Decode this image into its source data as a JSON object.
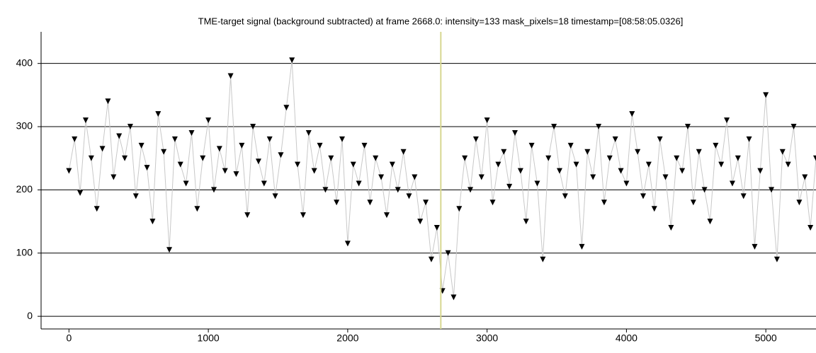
{
  "chart_data": {
    "type": "line",
    "title": "TME-target signal (background subtracted) at frame 2668.0: intensity=133 mask_pixels=18 timestamp=[08:58:05.0326]",
    "x": [
      0,
      40,
      80,
      120,
      160,
      200,
      240,
      280,
      320,
      360,
      400,
      440,
      480,
      520,
      560,
      600,
      640,
      680,
      720,
      760,
      800,
      840,
      880,
      920,
      960,
      1000,
      1040,
      1080,
      1120,
      1160,
      1200,
      1240,
      1280,
      1320,
      1360,
      1400,
      1440,
      1480,
      1520,
      1560,
      1600,
      1640,
      1680,
      1720,
      1760,
      1800,
      1840,
      1880,
      1920,
      1960,
      2000,
      2040,
      2080,
      2120,
      2160,
      2200,
      2240,
      2280,
      2320,
      2360,
      2400,
      2440,
      2480,
      2520,
      2560,
      2600,
      2640,
      2680,
      2720,
      2760,
      2800,
      2840,
      2880,
      2920,
      2960,
      3000,
      3040,
      3080,
      3120,
      3160,
      3200,
      3240,
      3280,
      3320,
      3360,
      3400,
      3440,
      3480,
      3520,
      3560,
      3600,
      3640,
      3680,
      3720,
      3760,
      3800,
      3840,
      3880,
      3920,
      3960,
      4000,
      4040,
      4080,
      4120,
      4160,
      4200,
      4240,
      4280,
      4320,
      4360,
      4400,
      4440,
      4480,
      4520,
      4560,
      4600,
      4640,
      4680,
      4720,
      4760,
      4800,
      4840,
      4880,
      4920,
      4960,
      5000,
      5040,
      5080,
      5120,
      5160,
      5200,
      5240,
      5280,
      5320,
      5360
    ],
    "series": [
      {
        "color": "#000000",
        "line_color": "#c8c8c8",
        "values": [
          230,
          280,
          195,
          310,
          250,
          170,
          265,
          340,
          220,
          285,
          250,
          300,
          190,
          270,
          235,
          150,
          320,
          260,
          105,
          280,
          240,
          210,
          290,
          170,
          250,
          310,
          200,
          265,
          230,
          380,
          225,
          270,
          160,
          300,
          245,
          210,
          280,
          190,
          255,
          330,
          405,
          240,
          160,
          290,
          230,
          270,
          200,
          250,
          180,
          280,
          115,
          240,
          210,
          270,
          180,
          250,
          220,
          160,
          240,
          200,
          260,
          190,
          220,
          150,
          180,
          90,
          140,
          40,
          100,
          30,
          170,
          250,
          200,
          280,
          220,
          310,
          180,
          240,
          260,
          205,
          290,
          230,
          150,
          270,
          210,
          90,
          250,
          300,
          230,
          190,
          270,
          240,
          110,
          260,
          220,
          300,
          180,
          250,
          280,
          230,
          210,
          320,
          260,
          190,
          240,
          170,
          280,
          220,
          140,
          250,
          230,
          300,
          180,
          260,
          200,
          150,
          270,
          240,
          310,
          210,
          250,
          190,
          280,
          110,
          230,
          350,
          200,
          90,
          260,
          240,
          300,
          180,
          220,
          140,
          250
        ]
      }
    ],
    "cursor": {
      "x": 2668,
      "color": "#d8d890"
    },
    "xlim": [
      -200,
      5360
    ],
    "ylim": [
      -20,
      450
    ],
    "xticks": [
      0,
      1000,
      2000,
      3000,
      4000,
      5000
    ],
    "yticks": [
      0,
      100,
      200,
      300,
      400
    ],
    "grid": true
  }
}
